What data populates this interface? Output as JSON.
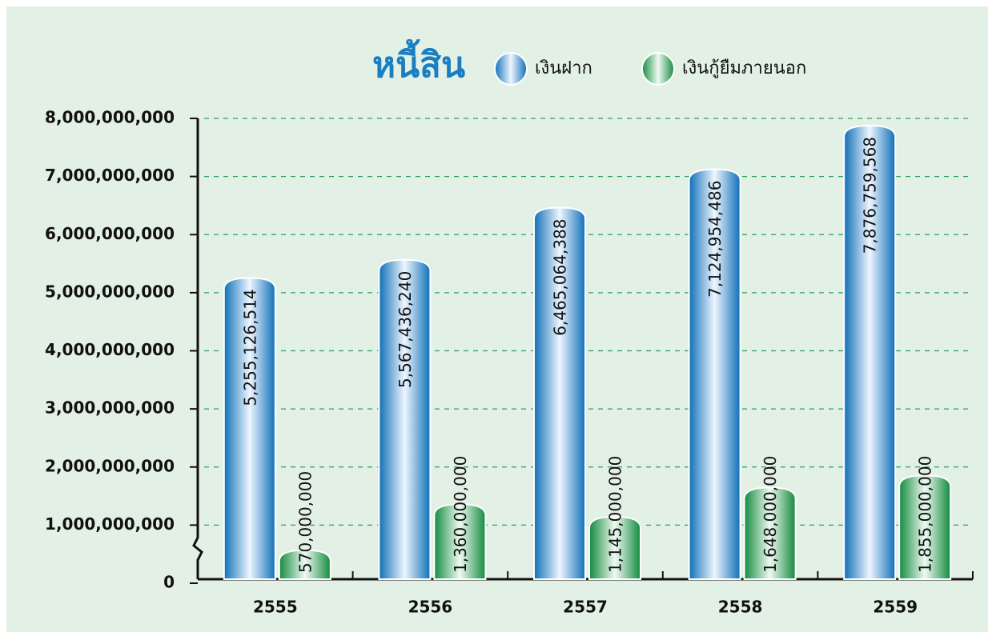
{
  "chart_data": {
    "type": "bar",
    "title": "หนี้สิน",
    "categories": [
      "2555",
      "2556",
      "2557",
      "2558",
      "2559"
    ],
    "series": [
      {
        "name": "เงินฝาก",
        "color": "#1a7fc8",
        "values": [
          5255126514,
          5567436240,
          6465064388,
          7124954486,
          7876759568
        ],
        "value_labels": [
          "5,255,126,514",
          "5,567,436,240",
          "6,465,064,388",
          "7,124,954,486",
          "7,876,759,568"
        ]
      },
      {
        "name": "เงินกู้ยืมภายนอก",
        "color": "#1e9a4a",
        "values": [
          570000000,
          1360000000,
          1145000000,
          1648000000,
          1855000000
        ],
        "value_labels": [
          "570,000,000",
          "1,360,000,000",
          "1,145,000,000",
          "1,648,000,000",
          "1,855,000,000"
        ]
      }
    ],
    "ylim": [
      0,
      8000000000
    ],
    "yticks": [
      0,
      {
        "value": 1000000000,
        "label": "1,000,000,000"
      },
      {
        "value": 2000000000,
        "label": "2,000,000,000"
      },
      {
        "value": 3000000000,
        "label": "3,000,000,000"
      },
      {
        "value": 4000000000,
        "label": "4,000,000,000"
      },
      {
        "value": 5000000000,
        "label": "5,000,000,000"
      },
      {
        "value": 6000000000,
        "label": "6,000,000,000"
      },
      {
        "value": 7000000000,
        "label": "7,000,000,000"
      },
      {
        "value": 8000000000,
        "label": "8,000,000,000"
      }
    ],
    "grid": true
  }
}
